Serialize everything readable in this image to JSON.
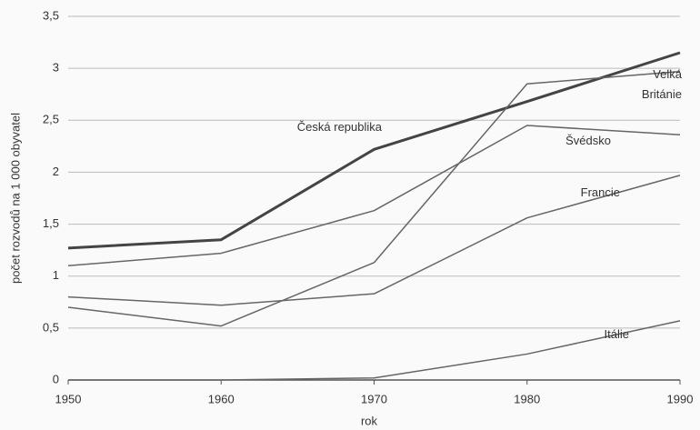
{
  "chart_data": {
    "type": "line",
    "x_label": "rok",
    "y_label": "počet rozvodů na 1 000 obyvatel",
    "x": [
      1950,
      1960,
      1970,
      1980,
      1990
    ],
    "series": [
      {
        "name": "Česká republika",
        "color": "#444444",
        "line_width": 3,
        "values": [
          1.27,
          1.35,
          2.22,
          2.68,
          3.15
        ]
      },
      {
        "name": "Velká Británie",
        "color": "#666666",
        "line_width": 1.5,
        "values": [
          0.7,
          0.52,
          1.13,
          2.85,
          2.97
        ]
      },
      {
        "name": "Švédsko",
        "color": "#666666",
        "line_width": 1.5,
        "values": [
          1.1,
          1.22,
          1.63,
          2.45,
          2.36
        ]
      },
      {
        "name": "Francie",
        "color": "#666666",
        "line_width": 1.5,
        "values": [
          0.8,
          0.72,
          0.83,
          1.56,
          1.97
        ]
      },
      {
        "name": "Itálie",
        "color": "#666666",
        "line_width": 1.5,
        "values": [
          0,
          0,
          0.02,
          0.25,
          0.57
        ]
      }
    ],
    "xlim": [
      1950,
      1990
    ],
    "xticks": [
      1950,
      1960,
      1970,
      1980,
      1990
    ],
    "ylim": [
      0,
      3.5
    ],
    "yticks": [
      0,
      {
        "value": 0.5,
        "label": "0,5"
      },
      1,
      {
        "value": 1.5,
        "label": "1,5"
      },
      2,
      {
        "value": 2.5,
        "label": "2,5"
      },
      3,
      {
        "value": 3.5,
        "label": "3,5"
      }
    ],
    "grid": true
  }
}
